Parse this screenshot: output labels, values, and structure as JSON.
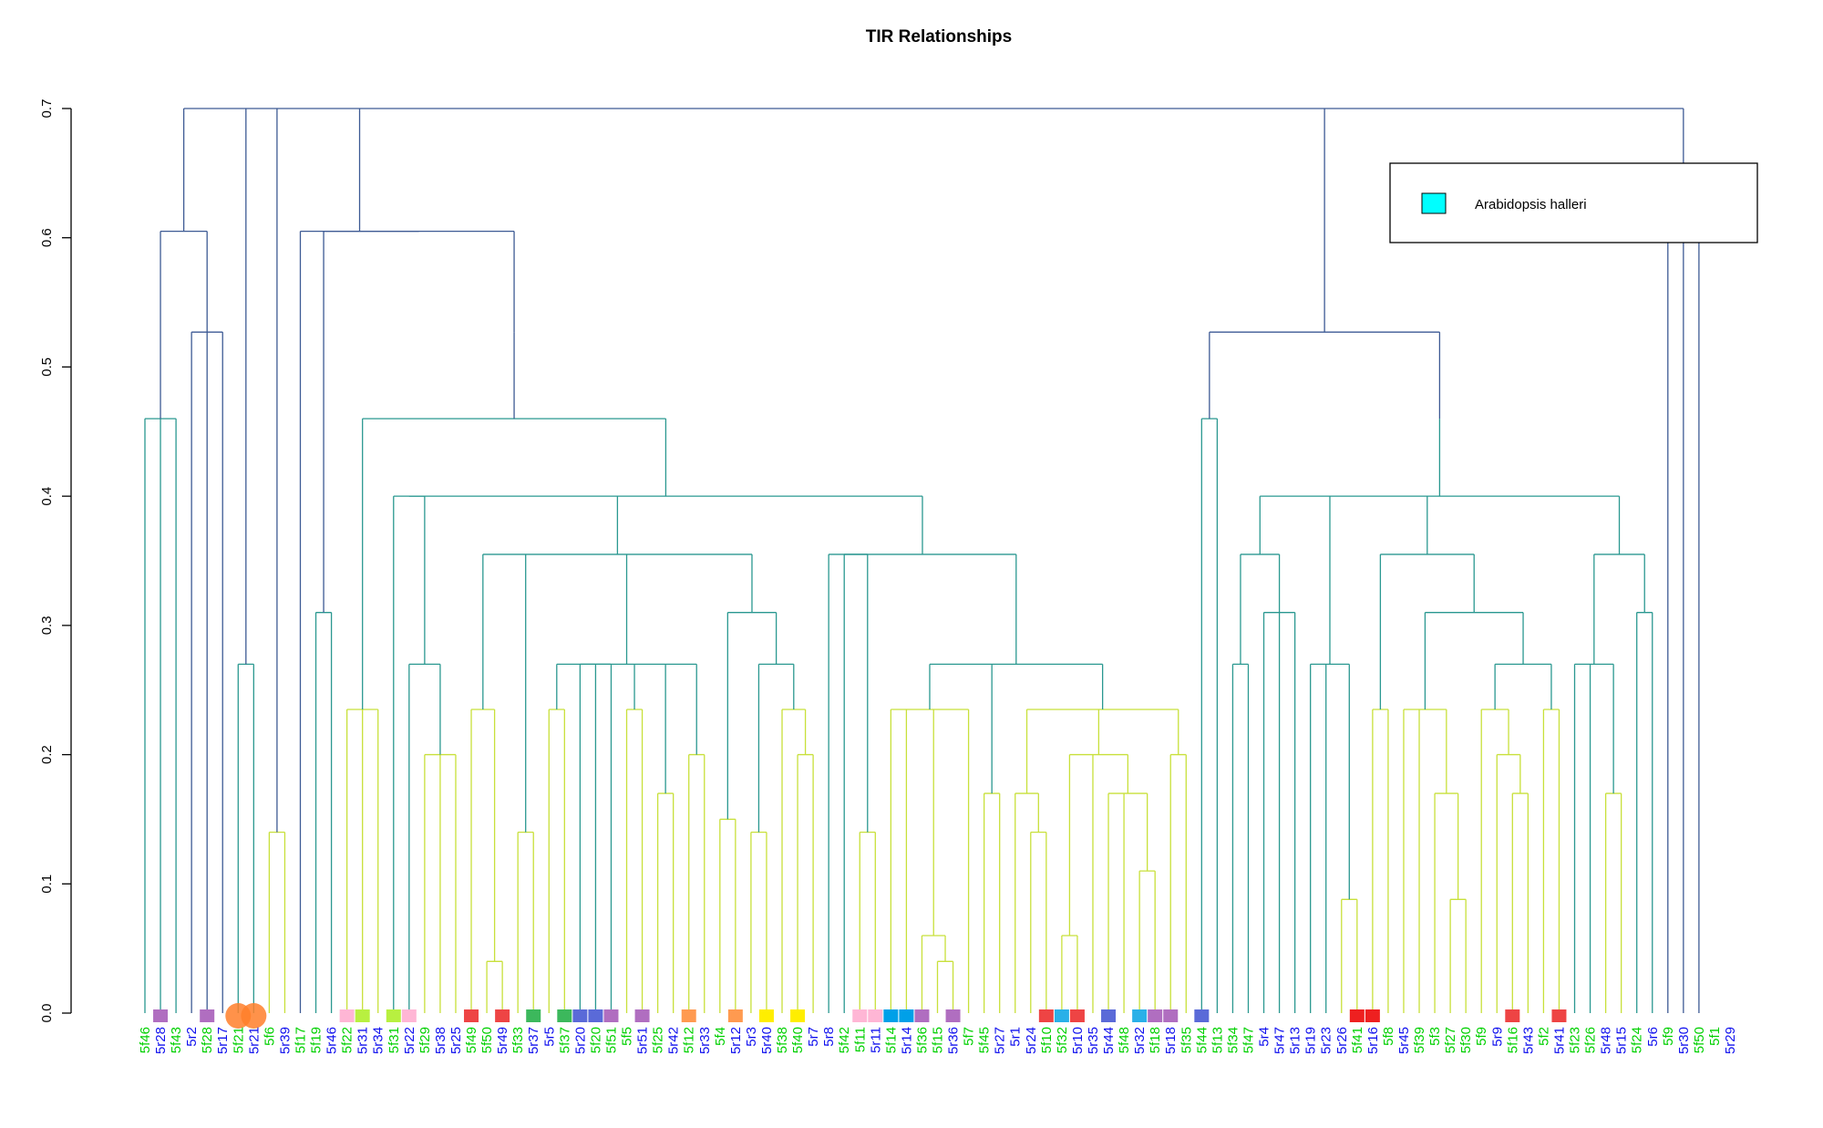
{
  "chart_data": {
    "type": "dendrogram",
    "title": "TIR Relationships",
    "ylim": [
      0,
      0.7
    ],
    "yticks": [
      "0.0",
      "0.1",
      "0.2",
      "0.3",
      "0.4",
      "0.5",
      "0.6",
      "0.7"
    ],
    "legend": {
      "position": "top-right",
      "label": "Arabidopsis halleri",
      "color": "#00ffff"
    },
    "label_colors": {
      "green": "#00d000",
      "blue": "#1010ee"
    },
    "leaves": [
      {
        "label": "5f46",
        "c": "green"
      },
      {
        "label": "5r28",
        "c": "blue",
        "m": "#b06ec0"
      },
      {
        "label": "5f43",
        "c": "green"
      },
      {
        "label": "5r2",
        "c": "blue"
      },
      {
        "label": "5f28",
        "c": "green",
        "m": "#b06ec0"
      },
      {
        "label": "5r17",
        "c": "blue"
      },
      {
        "label": "5f21",
        "c": "green",
        "m": "#ff7f2a",
        "big": true
      },
      {
        "label": "5r21",
        "c": "blue",
        "m": "#ff7f2a",
        "big": true
      },
      {
        "label": "5f6",
        "c": "green"
      },
      {
        "label": "5r39",
        "c": "blue"
      },
      {
        "label": "5f17",
        "c": "green"
      },
      {
        "label": "5f19",
        "c": "green"
      },
      {
        "label": "5r46",
        "c": "blue"
      },
      {
        "label": "5f22",
        "c": "green",
        "m": "#ffb6d5"
      },
      {
        "label": "5r31",
        "c": "blue",
        "m": "#b8f040"
      },
      {
        "label": "5r34",
        "c": "blue"
      },
      {
        "label": "5f31",
        "c": "green",
        "m": "#b8f040"
      },
      {
        "label": "5r22",
        "c": "blue",
        "m": "#ffb6d5"
      },
      {
        "label": "5f29",
        "c": "green"
      },
      {
        "label": "5r38",
        "c": "blue"
      },
      {
        "label": "5r25",
        "c": "blue"
      },
      {
        "label": "5f49",
        "c": "green",
        "m": "#ee4444"
      },
      {
        "label": "5f50",
        "c": "green"
      },
      {
        "label": "5r49",
        "c": "blue",
        "m": "#ee4444"
      },
      {
        "label": "5f33",
        "c": "green"
      },
      {
        "label": "5r37",
        "c": "blue",
        "m": "#3cb85c"
      },
      {
        "label": "5r5",
        "c": "blue"
      },
      {
        "label": "5f37",
        "c": "green",
        "m": "#3cb85c"
      },
      {
        "label": "5r20",
        "c": "blue",
        "m": "#5a6ad8"
      },
      {
        "label": "5f20",
        "c": "green",
        "m": "#5a6ad8"
      },
      {
        "label": "5f51",
        "c": "green",
        "m": "#b06ec0"
      },
      {
        "label": "5f5",
        "c": "green"
      },
      {
        "label": "5r51",
        "c": "blue",
        "m": "#b06ec0"
      },
      {
        "label": "5f25",
        "c": "green"
      },
      {
        "label": "5r42",
        "c": "blue"
      },
      {
        "label": "5f12",
        "c": "green",
        "m": "#ff9a50"
      },
      {
        "label": "5r33",
        "c": "blue"
      },
      {
        "label": "5f4",
        "c": "green"
      },
      {
        "label": "5r12",
        "c": "blue",
        "m": "#ff9a50"
      },
      {
        "label": "5r3",
        "c": "blue"
      },
      {
        "label": "5r40",
        "c": "blue",
        "m": "#ffee00"
      },
      {
        "label": "5f38",
        "c": "green"
      },
      {
        "label": "5f40",
        "c": "green",
        "m": "#ffee00"
      },
      {
        "label": "5r7",
        "c": "blue"
      },
      {
        "label": "5r8",
        "c": "blue"
      },
      {
        "label": "5f42",
        "c": "green"
      },
      {
        "label": "5f11",
        "c": "green",
        "m": "#ffb6d5"
      },
      {
        "label": "5r11",
        "c": "blue",
        "m": "#ffb6d5"
      },
      {
        "label": "5f14",
        "c": "green",
        "m": "#00a0e8"
      },
      {
        "label": "5r14",
        "c": "blue",
        "m": "#00a0e8"
      },
      {
        "label": "5f36",
        "c": "green",
        "m": "#b06ec0"
      },
      {
        "label": "5f15",
        "c": "green"
      },
      {
        "label": "5r36",
        "c": "blue",
        "m": "#b06ec0"
      },
      {
        "label": "5f7",
        "c": "green"
      },
      {
        "label": "5f45",
        "c": "green"
      },
      {
        "label": "5r27",
        "c": "blue"
      },
      {
        "label": "5r1",
        "c": "blue"
      },
      {
        "label": "5r24",
        "c": "blue"
      },
      {
        "label": "5f10",
        "c": "green",
        "m": "#ee4444"
      },
      {
        "label": "5f32",
        "c": "green",
        "m": "#2ab0e8"
      },
      {
        "label": "5r10",
        "c": "blue",
        "m": "#ee4444"
      },
      {
        "label": "5r35",
        "c": "blue"
      },
      {
        "label": "5r44",
        "c": "blue",
        "m": "#5a6ad8"
      },
      {
        "label": "5f48",
        "c": "green"
      },
      {
        "label": "5r32",
        "c": "blue",
        "m": "#2ab0e8"
      },
      {
        "label": "5f18",
        "c": "green",
        "m": "#b06ec0"
      },
      {
        "label": "5r18",
        "c": "blue",
        "m": "#b06ec0"
      },
      {
        "label": "5f35",
        "c": "green"
      },
      {
        "label": "5f44",
        "c": "green",
        "m": "#5a6ad8"
      },
      {
        "label": "5f13",
        "c": "green"
      },
      {
        "label": "5f34",
        "c": "green"
      },
      {
        "label": "5f47",
        "c": "green"
      },
      {
        "label": "5r4",
        "c": "blue"
      },
      {
        "label": "5r47",
        "c": "blue"
      },
      {
        "label": "5r13",
        "c": "blue"
      },
      {
        "label": "5r19",
        "c": "blue"
      },
      {
        "label": "5r23",
        "c": "blue"
      },
      {
        "label": "5r26",
        "c": "blue"
      },
      {
        "label": "5f41",
        "c": "green",
        "m": "#ee2020"
      },
      {
        "label": "5r16",
        "c": "blue",
        "m": "#ee2020"
      },
      {
        "label": "5f8",
        "c": "green"
      },
      {
        "label": "5r45",
        "c": "blue"
      },
      {
        "label": "5f39",
        "c": "green"
      },
      {
        "label": "5f3",
        "c": "green"
      },
      {
        "label": "5f27",
        "c": "green"
      },
      {
        "label": "5f30",
        "c": "green"
      },
      {
        "label": "5f9",
        "c": "green"
      },
      {
        "label": "5r9",
        "c": "blue"
      },
      {
        "label": "5f16",
        "c": "green",
        "m": "#ee4444"
      },
      {
        "label": "5r43",
        "c": "blue"
      },
      {
        "label": "5f2",
        "c": "green"
      },
      {
        "label": "5r41",
        "c": "blue",
        "m": "#ee4444"
      },
      {
        "label": "5f23",
        "c": "green"
      },
      {
        "label": "5f26",
        "c": "green"
      },
      {
        "label": "5r48",
        "c": "blue"
      },
      {
        "label": "5r15",
        "c": "blue"
      },
      {
        "label": "5f24",
        "c": "green"
      },
      {
        "label": "5r6",
        "c": "blue"
      },
      {
        "label": "5f9",
        "c": "green"
      },
      {
        "label": "5r30",
        "c": "blue"
      },
      {
        "label": "5f50",
        "c": "green"
      },
      {
        "label": "5f1",
        "c": "green"
      },
      {
        "label": "5r29",
        "c": "blue"
      }
    ]
  }
}
